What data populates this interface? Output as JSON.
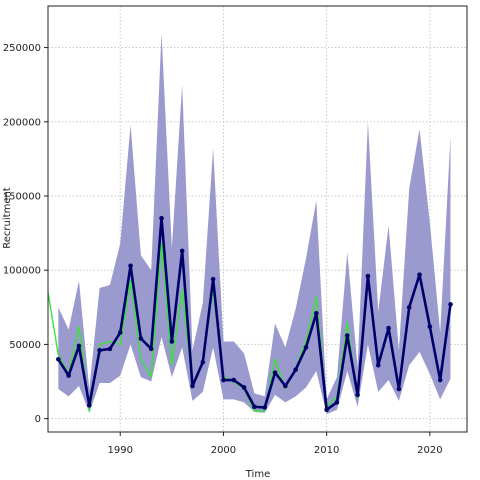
{
  "chart_data": {
    "type": "line",
    "title": "",
    "xlabel": "Time",
    "ylabel": "Recruitment",
    "xlim": [
      1983,
      2023.6
    ],
    "ylim": [
      -9000,
      278000
    ],
    "xticks": [
      1990,
      2000,
      2010,
      2020
    ],
    "yticks": [
      0,
      50000,
      100000,
      150000,
      200000,
      250000
    ],
    "grid": true,
    "legend": "none",
    "colors": {
      "band": "#9a9ace",
      "estimate": "#00006b",
      "observed": "#3be03b",
      "grid": "#c8c8c8",
      "axis": "#222222"
    },
    "series": [
      {
        "role": "confidence_band",
        "x": [
          1984,
          1985,
          1986,
          1987,
          1988,
          1989,
          1990,
          1991,
          1992,
          1993,
          1994,
          1995,
          1996,
          1997,
          1998,
          1999,
          2000,
          2001,
          2002,
          2003,
          2004,
          2005,
          2006,
          2007,
          2008,
          2009,
          2010,
          2011,
          2012,
          2013,
          2014,
          2015,
          2016,
          2017,
          2018,
          2019,
          2020,
          2021,
          2022
        ],
        "lower": [
          20000,
          15000,
          22000,
          4000,
          24000,
          24000,
          29000,
          50000,
          28000,
          25000,
          55000,
          28000,
          48000,
          12000,
          18000,
          48000,
          13000,
          13000,
          11000,
          4500,
          4000,
          16000,
          11000,
          15000,
          21000,
          32000,
          3000,
          6000,
          32000,
          8000,
          50000,
          18000,
          26000,
          12000,
          36000,
          45000,
          30000,
          13000,
          27000
        ],
        "upper": [
          75000,
          60000,
          93000,
          20000,
          88000,
          90000,
          118000,
          198000,
          110000,
          100000,
          260000,
          115000,
          225000,
          46000,
          78000,
          182000,
          52000,
          52000,
          44000,
          17000,
          15000,
          64000,
          48000,
          74000,
          108000,
          147000,
          13000,
          28000,
          112000,
          35000,
          200000,
          72000,
          130000,
          46000,
          155000,
          195000,
          132000,
          58000,
          190000
        ]
      },
      {
        "role": "estimate",
        "x": [
          1984,
          1985,
          1986,
          1987,
          1988,
          1989,
          1990,
          1991,
          1992,
          1993,
          1994,
          1995,
          1996,
          1997,
          1998,
          1999,
          2000,
          2001,
          2002,
          2003,
          2004,
          2005,
          2006,
          2007,
          2008,
          2009,
          2010,
          2011,
          2012,
          2013,
          2014,
          2015,
          2016,
          2017,
          2018,
          2019,
          2020,
          2021,
          2022
        ],
        "values": [
          40000,
          29000,
          49000,
          9000,
          46000,
          47000,
          58000,
          103000,
          54000,
          47000,
          135000,
          52000,
          113000,
          22000,
          38000,
          94000,
          26000,
          26000,
          21000,
          8000,
          7500,
          31000,
          22000,
          33000,
          48000,
          71000,
          6000,
          11000,
          56000,
          16000,
          96000,
          36000,
          61000,
          20000,
          75000,
          97000,
          62000,
          26000,
          77000
        ]
      },
      {
        "role": "observed",
        "x": [
          1983,
          1984,
          1985,
          1986,
          1987,
          1988,
          1989,
          1990,
          1991,
          1992,
          1993,
          1994,
          1995,
          1996,
          1997,
          1998,
          1999,
          2000,
          2001,
          2002,
          2003,
          2004,
          2005,
          2006,
          2007,
          2008,
          2009,
          2010,
          2011,
          2012,
          2013,
          2014,
          2015,
          2016,
          2017,
          2018,
          2019,
          2020,
          2021,
          2022
        ],
        "values": [
          85000,
          43000,
          30000,
          62000,
          5000,
          50000,
          52000,
          50000,
          93000,
          40000,
          28000,
          118000,
          36000,
          87000,
          22000,
          38000,
          87000,
          28000,
          25000,
          20000,
          5000,
          5500,
          40000,
          20000,
          34000,
          52000,
          82000,
          8000,
          15000,
          65000,
          14000,
          96000,
          36000,
          61000,
          20000,
          75000,
          97000,
          62000,
          26000,
          77000
        ]
      }
    ]
  }
}
